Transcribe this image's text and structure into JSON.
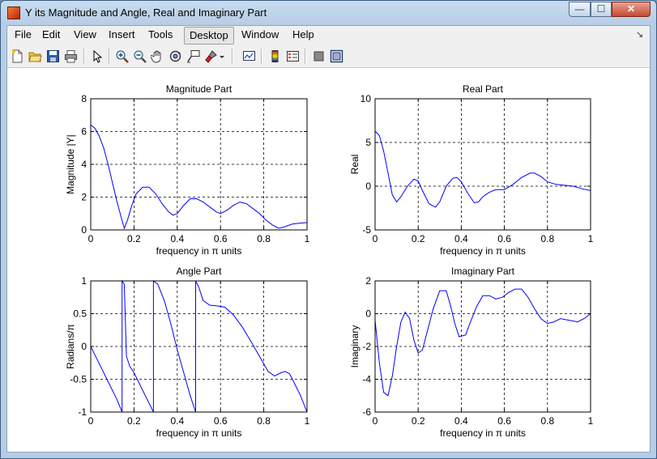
{
  "window": {
    "title": "Y its Magnitude and Angle, Real and Imaginary Part",
    "controls": {
      "minimize": "—",
      "maximize": "☐",
      "close": "✕"
    }
  },
  "menubar": {
    "items": [
      "File",
      "Edit",
      "View",
      "Insert",
      "Tools",
      "Desktop",
      "Window",
      "Help"
    ],
    "active": "Desktop",
    "overflow": "↘"
  },
  "toolbar": {
    "icons": [
      "new-figure-icon",
      "open-file-icon",
      "save-icon",
      "print-icon",
      "edit-plot-arrow-icon",
      "zoom-in-icon",
      "zoom-out-icon",
      "pan-hand-icon",
      "rotate-3d-icon",
      "data-cursor-icon",
      "brush-icon",
      "brush-dropdown-icon",
      "link-plot-icon",
      "colorbar-icon",
      "legend-icon",
      "hide-plot-tools-icon",
      "show-plot-tools-icon"
    ]
  },
  "colors": {
    "line": "#0000ff",
    "grid": "#000000",
    "axes": "#000000"
  },
  "chart_data": [
    {
      "type": "line",
      "title": "Magnitude Part",
      "xlabel": "frequency in π units",
      "ylabel": "Magnitude  |Y|",
      "xlim": [
        0,
        1
      ],
      "ylim": [
        0,
        8
      ],
      "xticks": [
        0,
        0.2,
        0.4,
        0.6,
        0.8,
        1
      ],
      "xticklabels": [
        "0",
        "0.2",
        "0.4",
        "0.6",
        "0.8",
        "1"
      ],
      "yticks": [
        0,
        2,
        4,
        6,
        8
      ],
      "yticklabels": [
        "0",
        "2",
        "4",
        "6",
        "8"
      ],
      "grid": true,
      "x": [
        0,
        0.02,
        0.04,
        0.06,
        0.08,
        0.1,
        0.12,
        0.14,
        0.155,
        0.17,
        0.19,
        0.21,
        0.24,
        0.27,
        0.3,
        0.33,
        0.36,
        0.38,
        0.4,
        0.43,
        0.46,
        0.49,
        0.52,
        0.55,
        0.58,
        0.6,
        0.63,
        0.66,
        0.69,
        0.72,
        0.75,
        0.78,
        0.81,
        0.84,
        0.87,
        0.9,
        0.93,
        0.96,
        1.0
      ],
      "y": [
        6.4,
        6.2,
        5.7,
        5.0,
        4.0,
        2.9,
        1.8,
        0.8,
        0.1,
        0.6,
        1.5,
        2.2,
        2.6,
        2.6,
        2.2,
        1.6,
        1.1,
        0.9,
        1.0,
        1.5,
        1.9,
        1.9,
        1.7,
        1.4,
        1.1,
        1.0,
        1.2,
        1.5,
        1.7,
        1.6,
        1.3,
        1.0,
        0.6,
        0.3,
        0.1,
        0.2,
        0.35,
        0.4,
        0.45
      ]
    },
    {
      "type": "line",
      "title": "Real Part",
      "xlabel": "frequency in π units",
      "ylabel": "Real",
      "xlim": [
        0,
        1
      ],
      "ylim": [
        -5,
        10
      ],
      "xticks": [
        0,
        0.2,
        0.4,
        0.6,
        0.8,
        1
      ],
      "xticklabels": [
        "0",
        "0.2",
        "0.4",
        "0.6",
        "0.8",
        "1"
      ],
      "yticks": [
        -5,
        0,
        5,
        10
      ],
      "yticklabels": [
        "-5",
        "0",
        "5",
        "10"
      ],
      "grid": true,
      "x": [
        0,
        0.02,
        0.04,
        0.06,
        0.08,
        0.1,
        0.12,
        0.15,
        0.18,
        0.2,
        0.22,
        0.25,
        0.28,
        0.3,
        0.33,
        0.36,
        0.38,
        0.4,
        0.43,
        0.46,
        0.48,
        0.5,
        0.53,
        0.56,
        0.6,
        0.64,
        0.68,
        0.72,
        0.74,
        0.77,
        0.8,
        0.84,
        0.88,
        0.92,
        0.96,
        1.0
      ],
      "y": [
        6.3,
        5.8,
        4.0,
        1.5,
        -1.0,
        -1.8,
        -1.2,
        0.0,
        0.8,
        0.6,
        -0.5,
        -2.0,
        -2.4,
        -1.8,
        0.0,
        0.9,
        1.0,
        0.5,
        -0.8,
        -1.9,
        -1.8,
        -1.2,
        -0.7,
        -0.4,
        -0.4,
        0.2,
        1.0,
        1.5,
        1.5,
        1.1,
        0.5,
        0.2,
        0.1,
        0.0,
        -0.3,
        -0.5
      ]
    },
    {
      "type": "line",
      "title": "Angle Part",
      "xlabel": "frequency in π units",
      "ylabel": "Radians/π",
      "xlim": [
        0,
        1
      ],
      "ylim": [
        -1,
        1
      ],
      "xticks": [
        0,
        0.2,
        0.4,
        0.6,
        0.8,
        1
      ],
      "xticklabels": [
        "0",
        "0.2",
        "0.4",
        "0.6",
        "0.8",
        "1"
      ],
      "yticks": [
        -1,
        -0.5,
        0,
        0.5,
        1
      ],
      "yticklabels": [
        "-1",
        "-0.5",
        "0",
        "0.5",
        "1"
      ],
      "grid": true,
      "x": [
        0,
        0.03,
        0.06,
        0.09,
        0.12,
        0.145,
        0.145,
        0.155,
        0.165,
        0.18,
        0.2,
        0.23,
        0.26,
        0.29,
        0.29,
        0.31,
        0.34,
        0.37,
        0.4,
        0.43,
        0.46,
        0.485,
        0.485,
        0.5,
        0.52,
        0.55,
        0.58,
        0.62,
        0.66,
        0.7,
        0.74,
        0.78,
        0.82,
        0.85,
        0.88,
        0.9,
        0.92,
        0.94,
        0.97,
        1.0
      ],
      "y": [
        0,
        -0.2,
        -0.4,
        -0.6,
        -0.8,
        -1.0,
        1.0,
        0.95,
        -0.15,
        -0.3,
        -0.4,
        -0.6,
        -0.8,
        -1.0,
        1.0,
        0.95,
        0.7,
        0.35,
        -0.05,
        -0.4,
        -0.75,
        -1.0,
        1.0,
        0.9,
        0.7,
        0.63,
        0.62,
        0.6,
        0.48,
        0.3,
        0.08,
        -0.15,
        -0.38,
        -0.45,
        -0.4,
        -0.38,
        -0.42,
        -0.55,
        -0.75,
        -1.0
      ]
    },
    {
      "type": "line",
      "title": "Imaginary Part",
      "xlabel": "frequency in π units",
      "ylabel": "Imaginary",
      "xlim": [
        0,
        1
      ],
      "ylim": [
        -6,
        2
      ],
      "xticks": [
        0,
        0.2,
        0.4,
        0.6,
        0.8,
        1
      ],
      "xticklabels": [
        "0",
        "0.2",
        "0.4",
        "0.6",
        "0.8",
        "1"
      ],
      "yticks": [
        -6,
        -4,
        -2,
        0,
        2
      ],
      "yticklabels": [
        "-6",
        "-4",
        "-2",
        "0",
        "2"
      ],
      "grid": true,
      "x": [
        0,
        0.02,
        0.04,
        0.06,
        0.08,
        0.1,
        0.12,
        0.14,
        0.16,
        0.18,
        0.2,
        0.22,
        0.24,
        0.27,
        0.3,
        0.33,
        0.35,
        0.37,
        0.39,
        0.42,
        0.44,
        0.47,
        0.5,
        0.53,
        0.56,
        0.59,
        0.62,
        0.65,
        0.68,
        0.71,
        0.74,
        0.77,
        0.8,
        0.83,
        0.86,
        0.9,
        0.94,
        0.97,
        1.0
      ],
      "y": [
        -0.4,
        -3.0,
        -4.8,
        -5.0,
        -3.8,
        -2.0,
        -0.5,
        0.1,
        -0.3,
        -1.6,
        -2.4,
        -2.2,
        -1.2,
        0.3,
        1.4,
        1.4,
        0.5,
        -0.6,
        -1.4,
        -1.3,
        -0.6,
        0.4,
        1.1,
        1.1,
        0.9,
        1.0,
        1.3,
        1.5,
        1.5,
        1.0,
        0.3,
        -0.3,
        -0.6,
        -0.5,
        -0.3,
        -0.4,
        -0.5,
        -0.3,
        0.0
      ]
    }
  ]
}
